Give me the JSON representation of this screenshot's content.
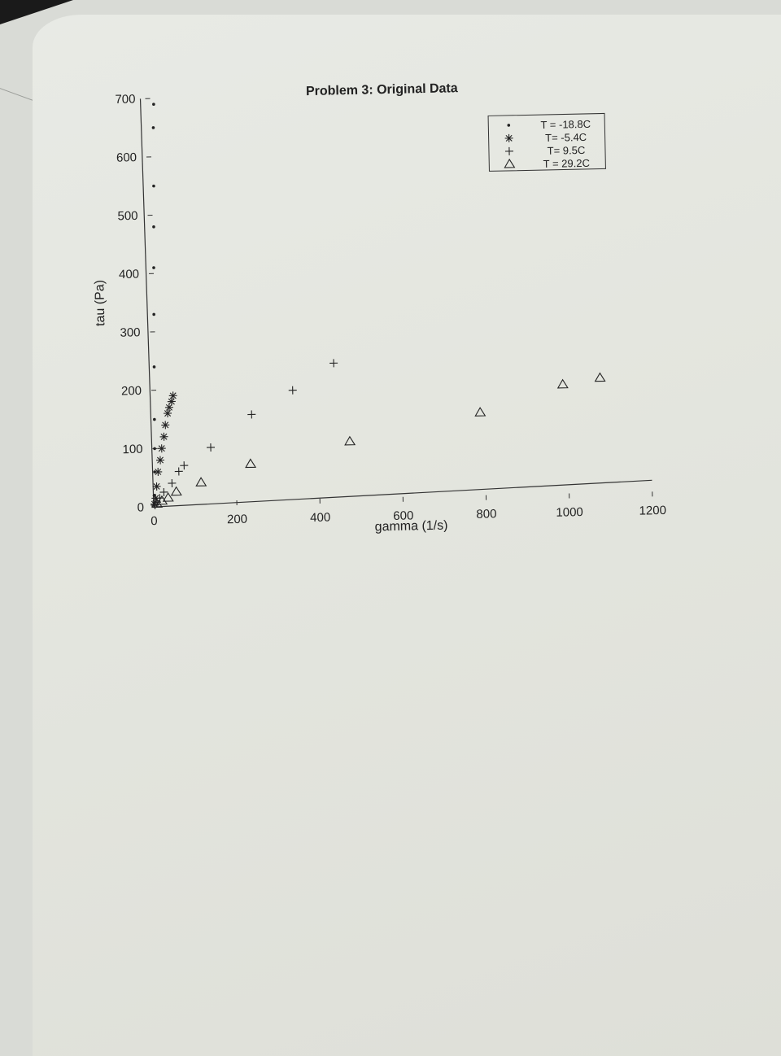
{
  "chart_data": {
    "type": "scatter",
    "title": "Problem 3: Original Data",
    "xlabel": "gamma (1/s)",
    "ylabel": "tau (Pa)",
    "xlim": [
      0,
      1200
    ],
    "ylim": [
      0,
      700
    ],
    "x_ticks": [
      "0",
      "200",
      "400",
      "600",
      "800",
      "1000",
      "1200"
    ],
    "y_ticks": [
      "0",
      "100",
      "200",
      "300",
      "400",
      "500",
      "600",
      "700"
    ],
    "grid": false,
    "legend_position": "top-right",
    "series": [
      {
        "name": "T = -18.8C",
        "marker": "dot",
        "points": [
          [
            1,
            5
          ],
          [
            2,
            20
          ],
          [
            4,
            60
          ],
          [
            5,
            100
          ],
          [
            6,
            150
          ],
          [
            8,
            240
          ],
          [
            10,
            330
          ],
          [
            12,
            410
          ],
          [
            14,
            480
          ],
          [
            16,
            550
          ],
          [
            18,
            650
          ],
          [
            20,
            690
          ]
        ]
      },
      {
        "name": "T= -5.4C",
        "marker": "asterisk",
        "points": [
          [
            2,
            5
          ],
          [
            5,
            15
          ],
          [
            8,
            35
          ],
          [
            12,
            60
          ],
          [
            18,
            80
          ],
          [
            22,
            100
          ],
          [
            28,
            120
          ],
          [
            32,
            140
          ],
          [
            38,
            160
          ],
          [
            42,
            170
          ],
          [
            48,
            180
          ],
          [
            52,
            190
          ]
        ]
      },
      {
        "name": "T= 9.5C",
        "marker": "plus",
        "points": [
          [
            3,
            3
          ],
          [
            8,
            8
          ],
          [
            15,
            15
          ],
          [
            25,
            25
          ],
          [
            45,
            40
          ],
          [
            62,
            60
          ],
          [
            75,
            70
          ],
          [
            140,
            100
          ],
          [
            240,
            155
          ],
          [
            340,
            195
          ],
          [
            440,
            240
          ]
        ]
      },
      {
        "name": "T = 29.2C",
        "marker": "triangle",
        "points": [
          [
            8,
            5
          ],
          [
            20,
            10
          ],
          [
            35,
            15
          ],
          [
            55,
            25
          ],
          [
            115,
            40
          ],
          [
            235,
            70
          ],
          [
            475,
            105
          ],
          [
            790,
            150
          ],
          [
            990,
            195
          ],
          [
            1080,
            205
          ]
        ]
      }
    ]
  }
}
